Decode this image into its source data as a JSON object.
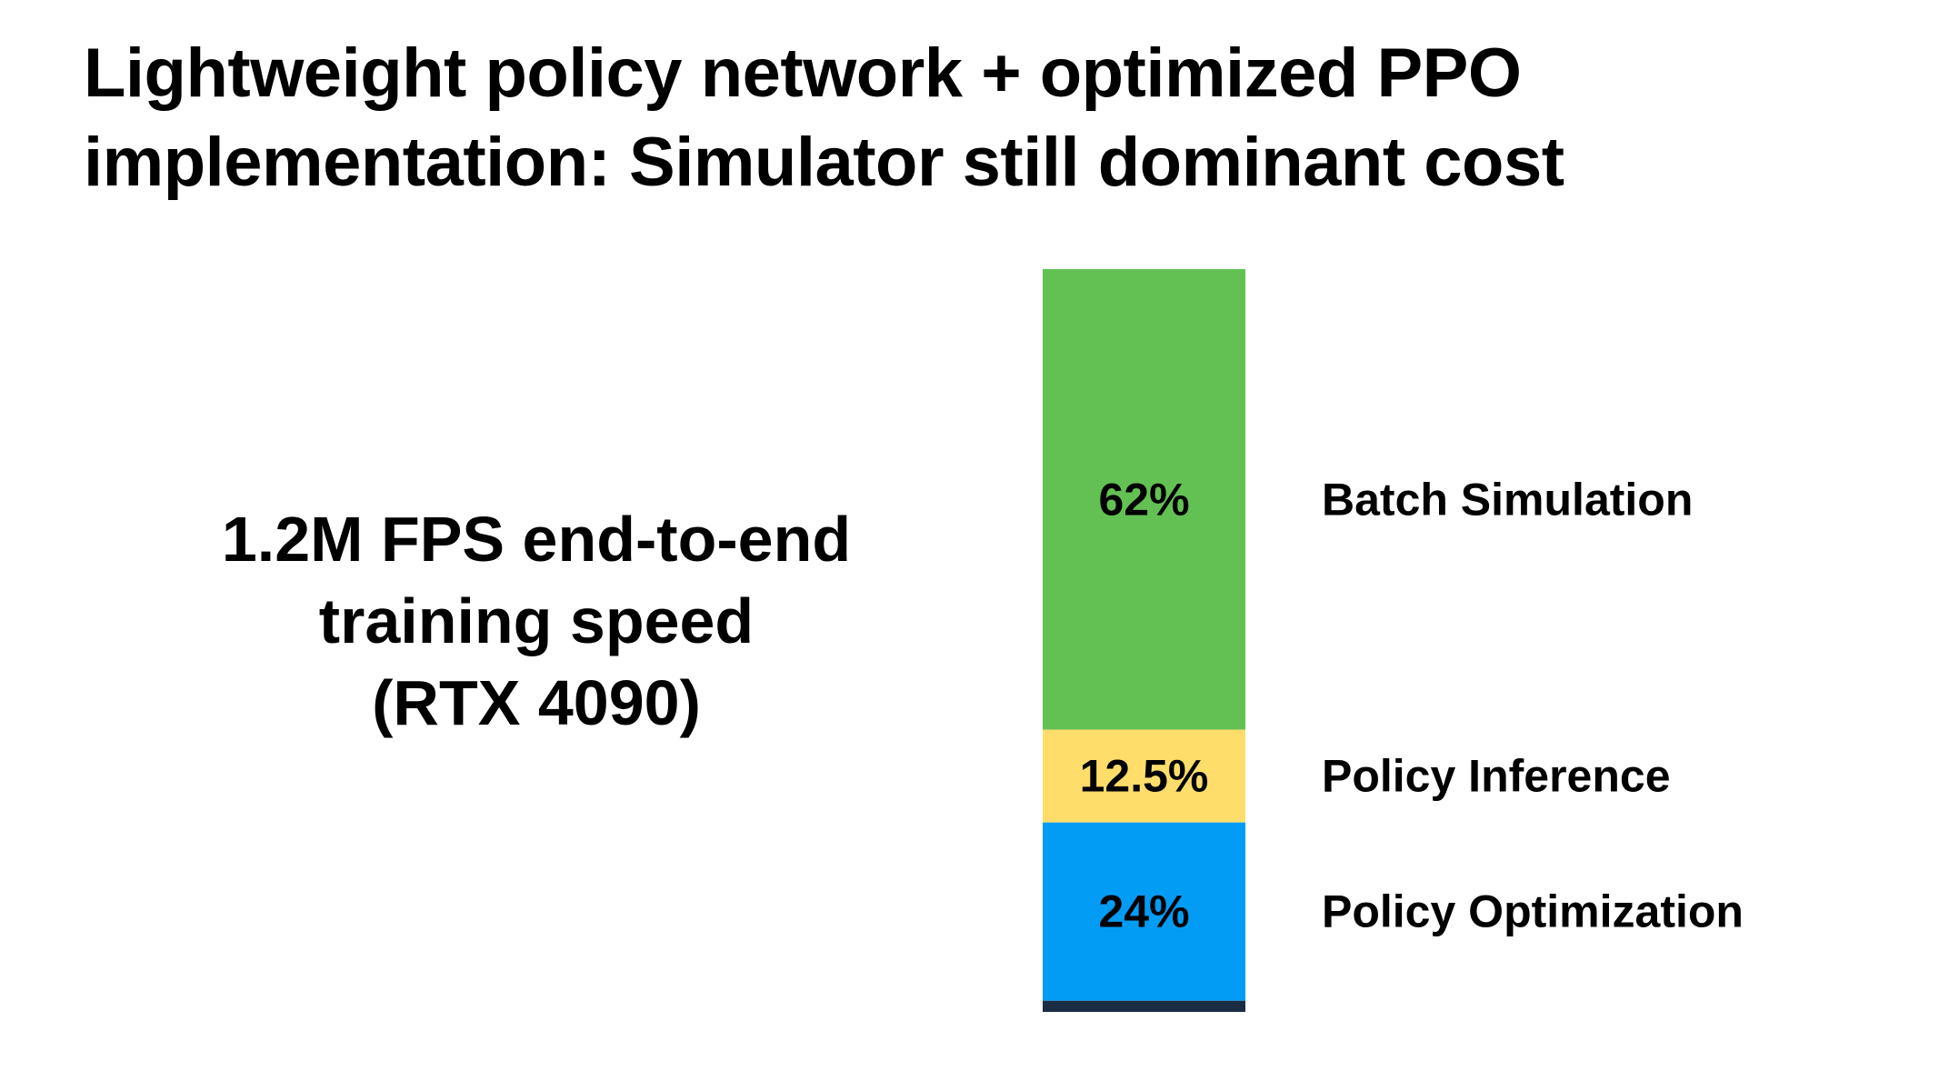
{
  "title": [
    "Lightweight policy network + optimized PPO",
    "implementation: Simulator still dominant cost"
  ],
  "note": [
    "1.2M FPS end-to-end",
    "training speed",
    "(RTX 4090)"
  ],
  "chart_data": {
    "type": "bar",
    "stacked": true,
    "orientation": "vertical",
    "unit": "%",
    "series": [
      {
        "name": "Batch Simulation",
        "value": 62,
        "label": "62%",
        "color": "#63c153"
      },
      {
        "name": "Policy Inference",
        "value": 12.5,
        "label": "12.5%",
        "color": "#ffdd6b"
      },
      {
        "name": "Policy Optimization",
        "value": 24,
        "label": "24%",
        "color": "#039cf5"
      },
      {
        "name": "",
        "value": 1.5,
        "label": "",
        "color": "#1b2d45"
      }
    ],
    "ylim": [
      0,
      100
    ],
    "legend": "right"
  }
}
